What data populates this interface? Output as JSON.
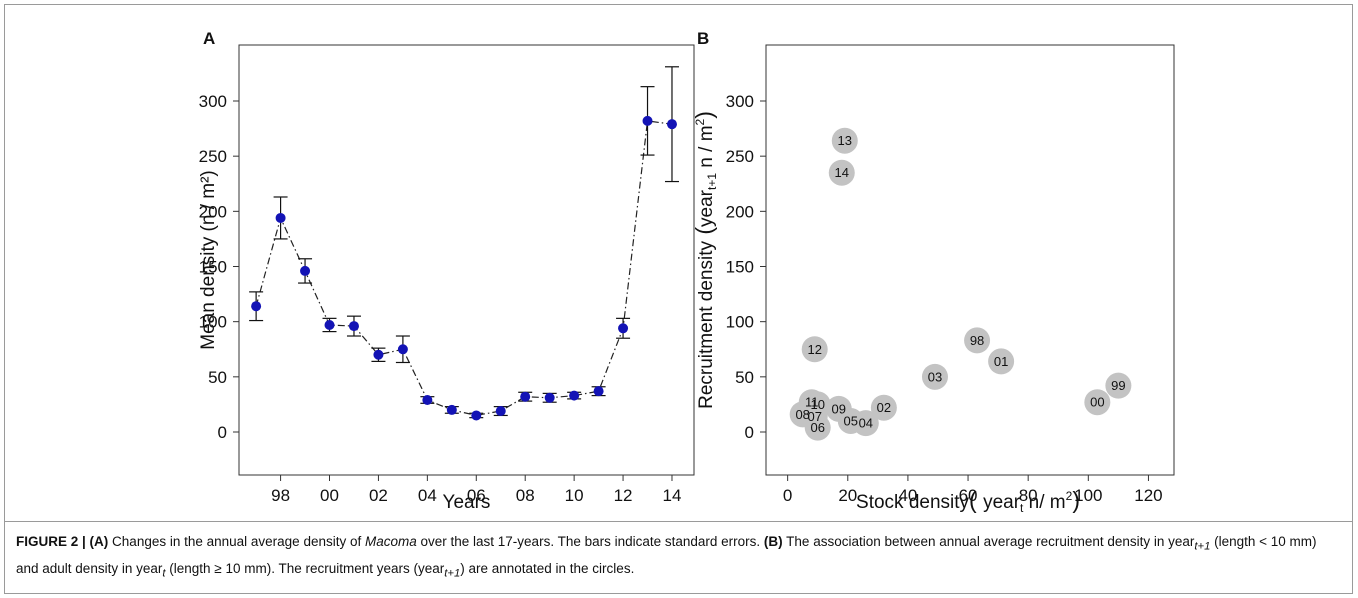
{
  "chart_data": [
    {
      "type": "line",
      "panel_label": "A",
      "xlabel": "Years",
      "ylabel": "Mean density (n / m²)",
      "x_ticks": [
        "98",
        "00",
        "02",
        "04",
        "06",
        "08",
        "10",
        "12",
        "14"
      ],
      "x_tick_years": [
        1998,
        2000,
        2002,
        2004,
        2006,
        2008,
        2010,
        2012,
        2014
      ],
      "y_ticks": [
        0,
        50,
        100,
        150,
        200,
        250,
        300
      ],
      "xlim": [
        1996.3,
        2014.9
      ],
      "ylim": [
        -13,
        340
      ],
      "line_style": "dash-dot",
      "marker_color": "#1313b5",
      "grid": false,
      "series": [
        {
          "x": [
            1997,
            1998,
            1999,
            2000,
            2001,
            2002,
            2003,
            2004,
            2005,
            2006,
            2007,
            2008,
            2009,
            2010,
            2011,
            2012,
            2013,
            2014
          ],
          "y": [
            114,
            194,
            146,
            97,
            96,
            70,
            75,
            29,
            20,
            15,
            19,
            32,
            31,
            33,
            37,
            94,
            282,
            279
          ],
          "error": [
            13,
            19,
            11,
            6,
            9,
            6,
            12,
            3,
            3,
            2,
            4,
            4,
            4,
            3,
            4,
            9,
            31,
            52
          ]
        }
      ]
    },
    {
      "type": "scatter",
      "panel_label": "B",
      "xlabel": "Stock density",
      "xlabel_unit": "year",
      "xlabel_sub": "t",
      "xlabel_tail": " n/ m",
      "ylabel": "Recruitment density",
      "ylabel_unit": "year",
      "ylabel_sub": "t+1",
      "ylabel_tail": " n / m",
      "x_ticks": [
        0,
        20,
        40,
        60,
        80,
        100,
        120
      ],
      "y_ticks": [
        0,
        50,
        100,
        150,
        200,
        250,
        300
      ],
      "xlim": [
        -7.2,
        128.5
      ],
      "ylim": [
        -13,
        340
      ],
      "marker_color": "#c3c3c3",
      "grid": false,
      "points": [
        {
          "label": "13",
          "x": 19,
          "y": 264
        },
        {
          "label": "14",
          "x": 18,
          "y": 235
        },
        {
          "label": "12",
          "x": 9,
          "y": 75
        },
        {
          "label": "98",
          "x": 63,
          "y": 83
        },
        {
          "label": "01",
          "x": 71,
          "y": 64
        },
        {
          "label": "03",
          "x": 49,
          "y": 50
        },
        {
          "label": "99",
          "x": 110,
          "y": 42
        },
        {
          "label": "00",
          "x": 103,
          "y": 27
        },
        {
          "label": "11",
          "x": 8,
          "y": 27
        },
        {
          "label": "10",
          "x": 10,
          "y": 25
        },
        {
          "label": "09",
          "x": 17,
          "y": 21
        },
        {
          "label": "02",
          "x": 32,
          "y": 22
        },
        {
          "label": "08",
          "x": 5,
          "y": 16
        },
        {
          "label": "07",
          "x": 9,
          "y": 14
        },
        {
          "label": "06",
          "x": 10,
          "y": 4
        },
        {
          "label": "05",
          "x": 21,
          "y": 10
        },
        {
          "label": "04",
          "x": 26,
          "y": 8
        }
      ]
    }
  ],
  "caption": {
    "figure_label": "FIGURE 2 | ",
    "a_label": "(A)",
    "text1": " Changes in the annual average density of ",
    "species": "Macoma",
    "text2": " over the last 17-years. The bars indicate standard errors. ",
    "b_label": "(B)",
    "text3": " The association between annual average recruitment density in year",
    "sub1": "t+1",
    "text4": " (length < 10 mm) and adult density in year",
    "sub2": "t",
    "text5": " (length ≥ 10 mm). The recruitment years (year",
    "sub3": "t+1",
    "text6": ") are annotated in the circles."
  }
}
